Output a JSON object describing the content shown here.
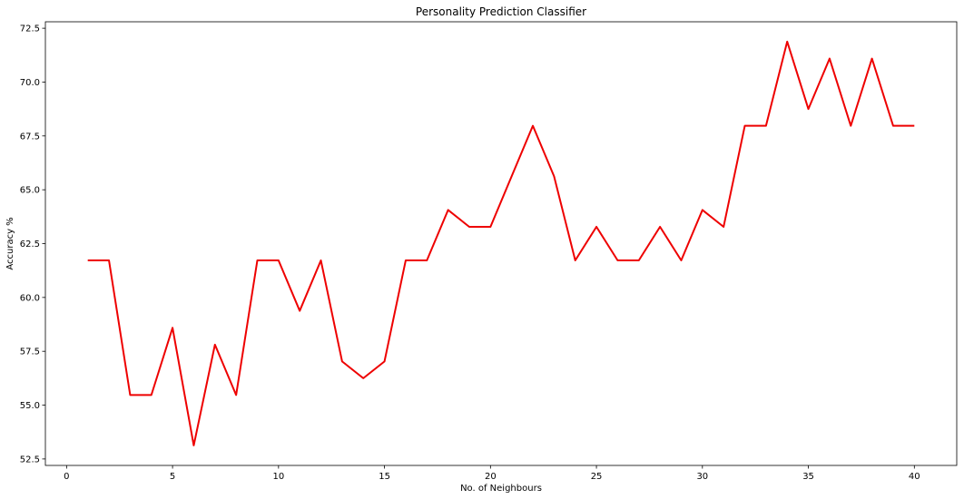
{
  "chart_data": {
    "type": "line",
    "title": "Personality Prediction Classifier",
    "xlabel": "No. of Neighbours",
    "ylabel": "Accuracy %",
    "xlim": [
      -1,
      42
    ],
    "ylim": [
      52.2,
      72.8
    ],
    "xticks": [
      0,
      5,
      10,
      15,
      20,
      25,
      30,
      35,
      40
    ],
    "xtick_labels": [
      "0",
      "5",
      "10",
      "15",
      "20",
      "25",
      "30",
      "35",
      "40"
    ],
    "yticks": [
      52.5,
      55.0,
      57.5,
      60.0,
      62.5,
      65.0,
      67.5,
      70.0,
      72.5
    ],
    "ytick_labels": [
      "52.5",
      "55.0",
      "57.5",
      "60.0",
      "62.5",
      "65.0",
      "67.5",
      "70.0",
      "72.5"
    ],
    "grid": false,
    "legend": "none",
    "series": [
      {
        "color": "#ee0000",
        "x": [
          1,
          2,
          3,
          4,
          5,
          6,
          7,
          8,
          9,
          10,
          11,
          12,
          13,
          14,
          15,
          16,
          17,
          18,
          19,
          20,
          21,
          22,
          23,
          24,
          25,
          26,
          27,
          28,
          29,
          30,
          31,
          32,
          33,
          34,
          35,
          36,
          37,
          38,
          39,
          40
        ],
        "y": [
          61.72,
          61.72,
          55.47,
          55.47,
          58.59,
          53.13,
          57.81,
          55.47,
          61.72,
          61.72,
          59.38,
          61.72,
          57.03,
          56.25,
          57.03,
          61.72,
          61.72,
          64.06,
          63.28,
          63.28,
          65.63,
          67.97,
          65.63,
          61.72,
          63.28,
          61.72,
          61.72,
          63.28,
          61.72,
          64.06,
          63.28,
          67.97,
          67.97,
          71.88,
          68.75,
          71.09,
          67.97,
          71.09,
          67.97,
          67.97
        ]
      }
    ]
  }
}
